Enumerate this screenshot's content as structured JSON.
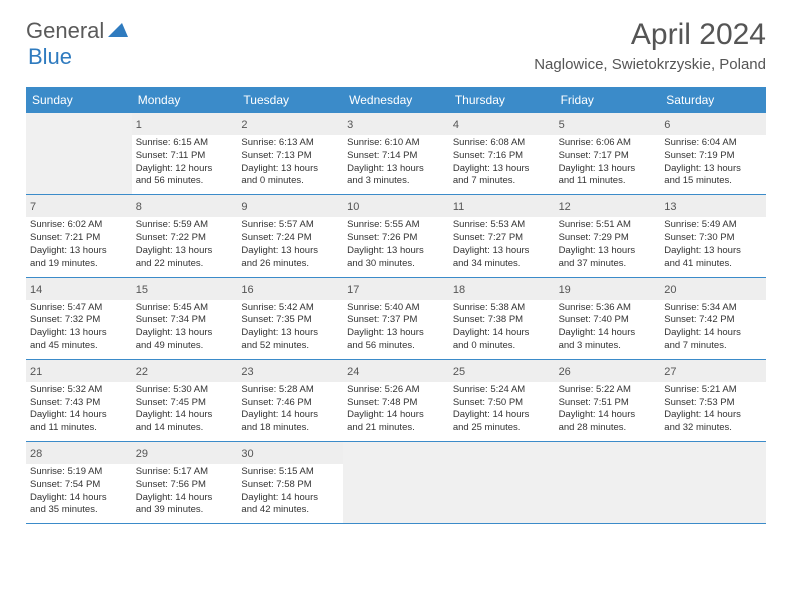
{
  "logo": {
    "text1": "General",
    "text2": "Blue"
  },
  "title": "April 2024",
  "location": "Naglowice, Swietokrzyskie, Poland",
  "colors": {
    "header_bg": "#3b8bc9",
    "header_text": "#ffffff",
    "daynum_bg": "#eeeeee",
    "empty_bg": "#f0f0f0",
    "border": "#3b8bc9",
    "logo_gray": "#5a5a5a",
    "logo_blue": "#2f7bbf"
  },
  "day_names": [
    "Sunday",
    "Monday",
    "Tuesday",
    "Wednesday",
    "Thursday",
    "Friday",
    "Saturday"
  ],
  "weeks": [
    [
      null,
      {
        "n": "1",
        "sr": "Sunrise: 6:15 AM",
        "ss": "Sunset: 7:11 PM",
        "d1": "Daylight: 12 hours",
        "d2": "and 56 minutes."
      },
      {
        "n": "2",
        "sr": "Sunrise: 6:13 AM",
        "ss": "Sunset: 7:13 PM",
        "d1": "Daylight: 13 hours",
        "d2": "and 0 minutes."
      },
      {
        "n": "3",
        "sr": "Sunrise: 6:10 AM",
        "ss": "Sunset: 7:14 PM",
        "d1": "Daylight: 13 hours",
        "d2": "and 3 minutes."
      },
      {
        "n": "4",
        "sr": "Sunrise: 6:08 AM",
        "ss": "Sunset: 7:16 PM",
        "d1": "Daylight: 13 hours",
        "d2": "and 7 minutes."
      },
      {
        "n": "5",
        "sr": "Sunrise: 6:06 AM",
        "ss": "Sunset: 7:17 PM",
        "d1": "Daylight: 13 hours",
        "d2": "and 11 minutes."
      },
      {
        "n": "6",
        "sr": "Sunrise: 6:04 AM",
        "ss": "Sunset: 7:19 PM",
        "d1": "Daylight: 13 hours",
        "d2": "and 15 minutes."
      }
    ],
    [
      {
        "n": "7",
        "sr": "Sunrise: 6:02 AM",
        "ss": "Sunset: 7:21 PM",
        "d1": "Daylight: 13 hours",
        "d2": "and 19 minutes."
      },
      {
        "n": "8",
        "sr": "Sunrise: 5:59 AM",
        "ss": "Sunset: 7:22 PM",
        "d1": "Daylight: 13 hours",
        "d2": "and 22 minutes."
      },
      {
        "n": "9",
        "sr": "Sunrise: 5:57 AM",
        "ss": "Sunset: 7:24 PM",
        "d1": "Daylight: 13 hours",
        "d2": "and 26 minutes."
      },
      {
        "n": "10",
        "sr": "Sunrise: 5:55 AM",
        "ss": "Sunset: 7:26 PM",
        "d1": "Daylight: 13 hours",
        "d2": "and 30 minutes."
      },
      {
        "n": "11",
        "sr": "Sunrise: 5:53 AM",
        "ss": "Sunset: 7:27 PM",
        "d1": "Daylight: 13 hours",
        "d2": "and 34 minutes."
      },
      {
        "n": "12",
        "sr": "Sunrise: 5:51 AM",
        "ss": "Sunset: 7:29 PM",
        "d1": "Daylight: 13 hours",
        "d2": "and 37 minutes."
      },
      {
        "n": "13",
        "sr": "Sunrise: 5:49 AM",
        "ss": "Sunset: 7:30 PM",
        "d1": "Daylight: 13 hours",
        "d2": "and 41 minutes."
      }
    ],
    [
      {
        "n": "14",
        "sr": "Sunrise: 5:47 AM",
        "ss": "Sunset: 7:32 PM",
        "d1": "Daylight: 13 hours",
        "d2": "and 45 minutes."
      },
      {
        "n": "15",
        "sr": "Sunrise: 5:45 AM",
        "ss": "Sunset: 7:34 PM",
        "d1": "Daylight: 13 hours",
        "d2": "and 49 minutes."
      },
      {
        "n": "16",
        "sr": "Sunrise: 5:42 AM",
        "ss": "Sunset: 7:35 PM",
        "d1": "Daylight: 13 hours",
        "d2": "and 52 minutes."
      },
      {
        "n": "17",
        "sr": "Sunrise: 5:40 AM",
        "ss": "Sunset: 7:37 PM",
        "d1": "Daylight: 13 hours",
        "d2": "and 56 minutes."
      },
      {
        "n": "18",
        "sr": "Sunrise: 5:38 AM",
        "ss": "Sunset: 7:38 PM",
        "d1": "Daylight: 14 hours",
        "d2": "and 0 minutes."
      },
      {
        "n": "19",
        "sr": "Sunrise: 5:36 AM",
        "ss": "Sunset: 7:40 PM",
        "d1": "Daylight: 14 hours",
        "d2": "and 3 minutes."
      },
      {
        "n": "20",
        "sr": "Sunrise: 5:34 AM",
        "ss": "Sunset: 7:42 PM",
        "d1": "Daylight: 14 hours",
        "d2": "and 7 minutes."
      }
    ],
    [
      {
        "n": "21",
        "sr": "Sunrise: 5:32 AM",
        "ss": "Sunset: 7:43 PM",
        "d1": "Daylight: 14 hours",
        "d2": "and 11 minutes."
      },
      {
        "n": "22",
        "sr": "Sunrise: 5:30 AM",
        "ss": "Sunset: 7:45 PM",
        "d1": "Daylight: 14 hours",
        "d2": "and 14 minutes."
      },
      {
        "n": "23",
        "sr": "Sunrise: 5:28 AM",
        "ss": "Sunset: 7:46 PM",
        "d1": "Daylight: 14 hours",
        "d2": "and 18 minutes."
      },
      {
        "n": "24",
        "sr": "Sunrise: 5:26 AM",
        "ss": "Sunset: 7:48 PM",
        "d1": "Daylight: 14 hours",
        "d2": "and 21 minutes."
      },
      {
        "n": "25",
        "sr": "Sunrise: 5:24 AM",
        "ss": "Sunset: 7:50 PM",
        "d1": "Daylight: 14 hours",
        "d2": "and 25 minutes."
      },
      {
        "n": "26",
        "sr": "Sunrise: 5:22 AM",
        "ss": "Sunset: 7:51 PM",
        "d1": "Daylight: 14 hours",
        "d2": "and 28 minutes."
      },
      {
        "n": "27",
        "sr": "Sunrise: 5:21 AM",
        "ss": "Sunset: 7:53 PM",
        "d1": "Daylight: 14 hours",
        "d2": "and 32 minutes."
      }
    ],
    [
      {
        "n": "28",
        "sr": "Sunrise: 5:19 AM",
        "ss": "Sunset: 7:54 PM",
        "d1": "Daylight: 14 hours",
        "d2": "and 35 minutes."
      },
      {
        "n": "29",
        "sr": "Sunrise: 5:17 AM",
        "ss": "Sunset: 7:56 PM",
        "d1": "Daylight: 14 hours",
        "d2": "and 39 minutes."
      },
      {
        "n": "30",
        "sr": "Sunrise: 5:15 AM",
        "ss": "Sunset: 7:58 PM",
        "d1": "Daylight: 14 hours",
        "d2": "and 42 minutes."
      },
      null,
      null,
      null,
      null
    ]
  ]
}
